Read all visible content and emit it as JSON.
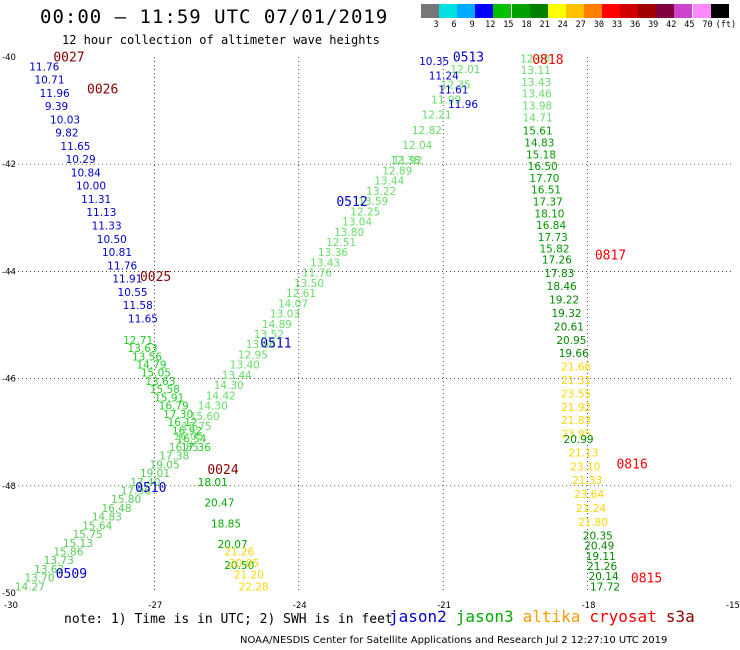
{
  "header": {
    "title": "00:00 – 11:59 UTC 07/01/2019",
    "subtitle": "12 hour collection of altimeter wave heights"
  },
  "color_scale": {
    "labels": [
      "3",
      "6",
      "9",
      "12",
      "15",
      "18",
      "21",
      "24",
      "27",
      "30",
      "33",
      "36",
      "39",
      "42",
      "45",
      "70",
      "(ft)"
    ],
    "colors": [
      "#777777",
      "#00e0e0",
      "#00aaff",
      "#0000ff",
      "#00c000",
      "#00a000",
      "#008000",
      "#ffff00",
      "#ffc000",
      "#ff8000",
      "#ff0000",
      "#d00000",
      "#a00000",
      "#800040",
      "#cc44cc",
      "#ff88ff",
      "#000000"
    ]
  },
  "axes": {
    "x_ticks": [
      "-30",
      "-27",
      "-24",
      "-21",
      "-18",
      "-15"
    ],
    "y_ticks": [
      "-40",
      "-42",
      "-44",
      "-46",
      "-48",
      "-50"
    ],
    "lon_range": [
      -30,
      -15
    ],
    "lat_range": [
      -50,
      -40
    ]
  },
  "pass_colors": {
    "jason2": "#0000cc",
    "jason3": "#00aa00",
    "cryosat": "#cc0000",
    "s3a": "#880000",
    "jason3_light": "#66dd66",
    "cryosat_green": "#009900"
  },
  "passes": [
    {
      "label": "0027",
      "lon": -29.1,
      "lat": -40.08,
      "color": "#880000"
    },
    {
      "label": "0026",
      "lon": -28.4,
      "lat": -40.68,
      "color": "#880000"
    },
    {
      "label": "0025",
      "lon": -27.3,
      "lat": -44.18,
      "color": "#880000"
    },
    {
      "label": "0024",
      "lon": -25.9,
      "lat": -47.78,
      "color": "#880000"
    },
    {
      "label": "0509",
      "lon": -29.05,
      "lat": -49.72,
      "color": "#0000cc"
    },
    {
      "label": "0510",
      "lon": -27.4,
      "lat": -48.12,
      "color": "#0000cc"
    },
    {
      "label": "0511",
      "lon": -24.8,
      "lat": -45.42,
      "color": "#0000cc"
    },
    {
      "label": "0512",
      "lon": -23.22,
      "lat": -42.78,
      "color": "#0000cc"
    },
    {
      "label": "0513",
      "lon": -20.8,
      "lat": -40.08,
      "color": "#0000cc"
    },
    {
      "label": "0818",
      "lon": -19.15,
      "lat": -40.13,
      "color": "#ff0000"
    },
    {
      "label": "0817",
      "lon": -17.85,
      "lat": -43.78,
      "color": "#ff0000"
    },
    {
      "label": "0816",
      "lon": -17.4,
      "lat": -47.68,
      "color": "#ff0000"
    },
    {
      "label": "0815",
      "lon": -17.1,
      "lat": -49.8,
      "color": "#ff0000"
    }
  ],
  "tracks": [
    {
      "name": "jason2 0025-0027 track",
      "color": "#0000cc",
      "start": [
        -29.6,
        -40.25
      ],
      "end": [
        -27.55,
        -44.95
      ],
      "values": [
        "11.76",
        "10.71",
        "11.96",
        "9.39",
        "10.03",
        "9.82",
        "11.65",
        "10.29",
        "10.84",
        "10.00",
        "11.31",
        "11.13",
        "11.33",
        "10.50",
        "10.81",
        "11.76",
        "11.91",
        "10.55",
        "11.58",
        "11.65"
      ]
    },
    {
      "name": "jason3 0024 track",
      "color": "#22cc22",
      "start": [
        -27.65,
        -45.35
      ],
      "end": [
        -26.45,
        -47.35
      ],
      "values": [
        "12.71",
        "13.63",
        "13.56",
        "14.79",
        "15.05",
        "13.63",
        "15.58",
        "15.91",
        "16.79",
        "17.30",
        "16.12",
        "16.92",
        "16.54",
        "17.36"
      ]
    },
    {
      "name": "cryosat descending",
      "color": "#00aa00",
      "start": [
        -26.1,
        -48.0
      ],
      "end": [
        -25.55,
        -49.55
      ],
      "values": [
        "18.01",
        "20.47",
        "18.85",
        "20.07",
        "20.50"
      ]
    },
    {
      "name": "altika descending",
      "color": "#ffd700",
      "start": [
        -25.55,
        -49.3
      ],
      "end": [
        -25.25,
        -49.95
      ],
      "values": [
        "21.26",
        "20.05",
        "21.20",
        "22.28"
      ]
    },
    {
      "name": "jason3 0509 track",
      "color": "#55cc55",
      "start": [
        -29.9,
        -49.95
      ],
      "end": [
        -26.7,
        -47.35
      ],
      "values": [
        "14.27",
        "13.70",
        "13.62",
        "13.73",
        "15.86",
        "15.13",
        "15.75",
        "15.64",
        "14.83",
        "16.48",
        "15.80",
        "17.96",
        "17.40",
        "19.01",
        "19.05",
        "17.38",
        "16.85"
      ]
    },
    {
      "name": "jason3 0510-0512 track",
      "color": "#66dd66",
      "start": [
        -26.6,
        -47.15
      ],
      "end": [
        -22.1,
        -42.0
      ],
      "values": [
        "16.05",
        "15.75",
        "15.60",
        "14.30",
        "14.42",
        "14.30",
        "13.44",
        "13.40",
        "12.95",
        "13.66",
        "13.52",
        "14.89",
        "13.03",
        "14.07",
        "12.61",
        "13.50",
        "11.76",
        "13.43",
        "13.36",
        "12.51",
        "13.80",
        "13.04",
        "12.25",
        "13.59",
        "13.22",
        "13.44",
        "12.89",
        "12.38"
      ]
    },
    {
      "name": "jason3 0512-0513 track",
      "color": "#66dd66",
      "start": [
        -22.05,
        -42.0
      ],
      "end": [
        -20.85,
        -40.3
      ],
      "values": [
        "11.92",
        "12.04",
        "12.82",
        "12.21",
        "11.99",
        "12.35",
        "12.01"
      ]
    },
    {
      "name": "jason2 0513 track",
      "color": "#0000cc",
      "start": [
        -21.5,
        -40.15
      ],
      "end": [
        -20.9,
        -40.95
      ],
      "values": [
        "10.35",
        "11.24",
        "11.61",
        "11.96"
      ]
    },
    {
      "name": "cryosat 0818 top",
      "color": "#66dd66",
      "start": [
        -19.4,
        -40.1
      ],
      "end": [
        -19.35,
        -41.2
      ],
      "values": [
        "12.68",
        "13.11",
        "13.43",
        "13.46",
        "13.98",
        "14.71"
      ]
    },
    {
      "name": "cryosat 0818 mid",
      "color": "#009900",
      "start": [
        -19.35,
        -41.45
      ],
      "end": [
        -19.0,
        -43.65
      ],
      "values": [
        "15.61",
        "14.83",
        "15.18",
        "16.50",
        "17.70",
        "16.51",
        "17.37",
        "18.10",
        "16.84",
        "17.73",
        "15.82"
      ]
    },
    {
      "name": "cryosat 0817",
      "color": "#008800",
      "start": [
        -18.95,
        -43.85
      ],
      "end": [
        -18.6,
        -45.6
      ],
      "values": [
        "17.26",
        "17.83",
        "18.46",
        "19.22",
        "19.32",
        "20.61",
        "20.95",
        "19.66"
      ]
    },
    {
      "name": "altika 0816 upper",
      "color": "#ffd700",
      "start": [
        -18.55,
        -45.85
      ],
      "end": [
        -18.55,
        -47.1
      ],
      "values": [
        "21.66",
        "21.31",
        "23.55",
        "21.92",
        "21.83",
        "23.95"
      ]
    },
    {
      "name": "green mid",
      "color": "#008800",
      "start": [
        -18.5,
        -47.2
      ],
      "end": [
        -18.5,
        -47.2
      ],
      "values": [
        "20.99"
      ]
    },
    {
      "name": "altika 0816 lower",
      "color": "#ffd700",
      "start": [
        -18.4,
        -47.45
      ],
      "end": [
        -18.2,
        -48.75
      ],
      "values": [
        "21.13",
        "23.10",
        "21.33",
        "23.64",
        "21.24",
        "21.80"
      ]
    },
    {
      "name": "green 0815",
      "color": "#008800",
      "start": [
        -18.1,
        -49.0
      ],
      "end": [
        -17.95,
        -49.95
      ],
      "values": [
        "20.35",
        "20.49",
        "19.11",
        "21.26",
        "20.14",
        "17.72"
      ]
    }
  ],
  "footer": {
    "note": "note: 1) Time is in UTC; 2) SWH is in feet",
    "satellites": [
      {
        "name": "jason2",
        "color": "#0000cc"
      },
      {
        "name": "jason3",
        "color": "#00aa00"
      },
      {
        "name": "altika",
        "color": "#ff9900"
      },
      {
        "name": "cryosat",
        "color": "#ff0000"
      },
      {
        "name": "s3a",
        "color": "#880000"
      }
    ],
    "credit": "NOAA/NESDIS Center for Satellite Applications and Research    Jul  2 12:27:10 UTC 2019"
  }
}
